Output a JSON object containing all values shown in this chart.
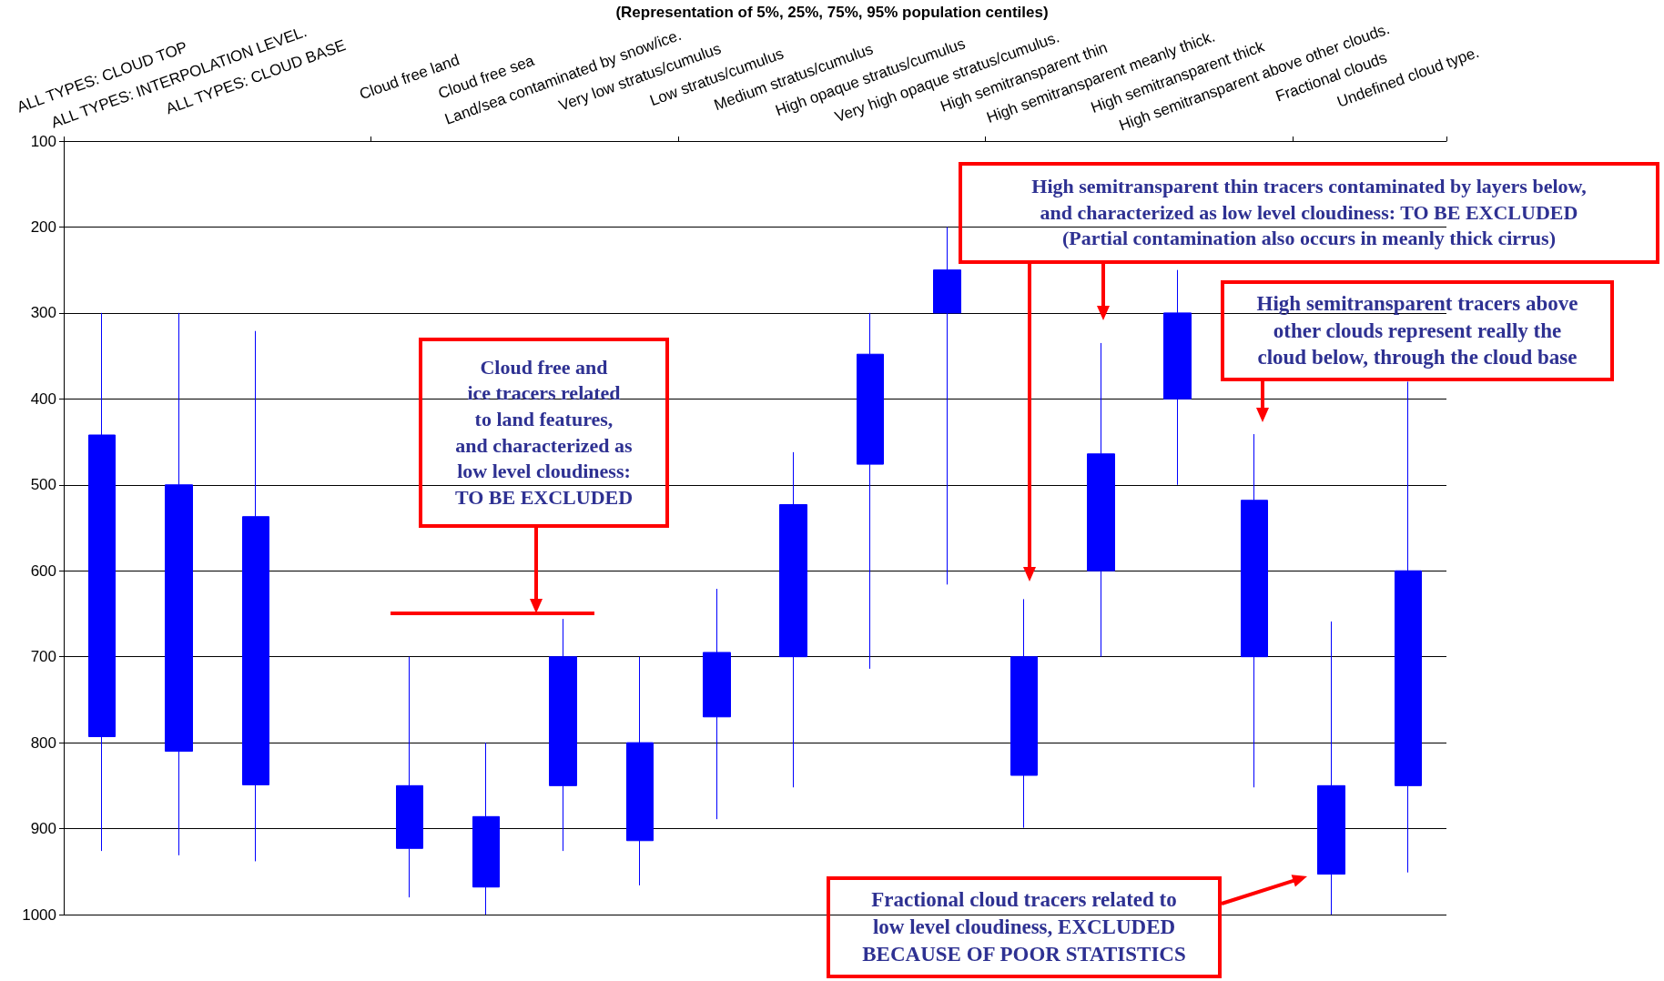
{
  "chart_data": {
    "type": "candlestick",
    "title": "(Representation of 5%, 25%, 75%, 95% population centiles)",
    "categories": [
      "ALL TYPES: CLOUD TOP",
      "ALL TYPES: INTERPOLATION LEVEL.",
      "ALL TYPES: CLOUD BASE",
      null,
      "Cloud free land",
      "Cloud free sea",
      "Land/sea contaminated by snow/ice.",
      "Very low stratus/cumulus",
      "Low stratus/cumulus",
      "Medium stratus/cumulus",
      "High opaque stratus/cumulus",
      "Very high opaque stratus/cumulus.",
      "High semitransparent thin",
      "High semitransparent meanly thick.",
      "High semitransparent thick",
      "High semitransparent above other clouds.",
      "Fractional clouds",
      "Undefined cloud type."
    ],
    "ohlc": [
      [
        442,
        926,
        300,
        793
      ],
      [
        500,
        931,
        300,
        810
      ],
      [
        537,
        938,
        321,
        849
      ],
      null,
      [
        850,
        980,
        700,
        923
      ],
      [
        886,
        1000,
        800,
        968
      ],
      [
        700,
        926,
        656,
        850
      ],
      [
        800,
        966,
        700,
        914
      ],
      [
        695,
        889,
        621,
        770
      ],
      [
        523,
        852,
        462,
        700
      ],
      [
        348,
        714,
        300,
        476
      ],
      [
        250,
        616,
        200,
        300
      ],
      [
        700,
        899,
        633,
        838
      ],
      [
        464,
        700,
        335,
        600
      ],
      [
        300,
        500,
        250,
        400
      ],
      [
        518,
        852,
        441,
        700
      ],
      [
        850,
        1000,
        659,
        953
      ],
      [
        600,
        951,
        380,
        850
      ]
    ],
    "color": "#0000ff",
    "ylim": [
      1000,
      100
    ],
    "yticks": [
      100,
      200,
      300,
      400,
      500,
      600,
      700,
      800,
      900,
      1000
    ],
    "grid": "y",
    "annotations": [
      "Cloud free and\nice tracers related\nto land features,\nand characterized as\nlow level cloudiness:\nTO BE EXCLUDED",
      "High semitransparent thin tracers contaminated by layers below,\nand characterized as low level cloudiness: TO BE EXCLUDED\n(Partial contamination also occurs in meanly thick cirrus)",
      "High semitransparent tracers above\nother clouds represent really the\ncloud below, through the cloud base",
      "Fractional cloud tracers related to\nlow level cloudiness, EXCLUDED\nBECAUSE OF POOR STATISTICS"
    ]
  }
}
